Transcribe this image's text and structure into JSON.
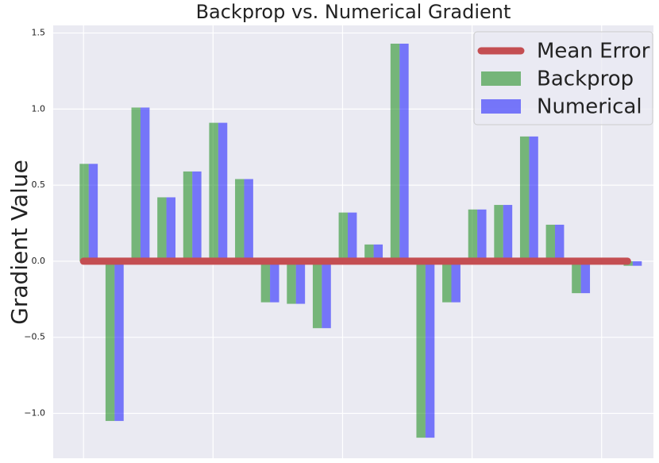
{
  "chart_data": {
    "type": "bar",
    "title": "Backprop vs. Numerical Gradient",
    "y_label": "Gradient Value",
    "x": [
      0,
      1,
      2,
      3,
      4,
      5,
      6,
      7,
      8,
      9,
      10,
      11,
      12,
      13,
      14,
      15,
      16,
      17,
      18,
      19,
      20,
      21
    ],
    "series": [
      {
        "name": "Mean Error",
        "type": "line",
        "color": "#c44e52",
        "values": [
          0,
          0,
          0,
          0,
          0,
          0,
          0,
          0,
          0,
          0,
          0,
          0,
          0,
          0,
          0,
          0,
          0,
          0,
          0,
          0,
          0,
          0
        ]
      },
      {
        "name": "Backprop",
        "color": "green",
        "values": [
          0.64,
          -1.05,
          1.01,
          0.42,
          0.59,
          0.91,
          0.54,
          -0.27,
          -0.28,
          -0.44,
          0.32,
          0.11,
          1.43,
          -1.16,
          -0.27,
          0.34,
          0.37,
          0.82,
          0.24,
          -0.21,
          0.0,
          -0.03
        ]
      },
      {
        "name": "Numerical",
        "color": "blue",
        "values": [
          0.64,
          -1.05,
          1.01,
          0.42,
          0.59,
          0.91,
          0.54,
          -0.27,
          -0.28,
          -0.44,
          0.32,
          0.11,
          1.43,
          -1.16,
          -0.27,
          0.34,
          0.37,
          0.82,
          0.24,
          -0.21,
          0.0,
          -0.03
        ]
      }
    ],
    "xlim": [
      -1.17,
      22.0
    ],
    "xticks": [
      0,
      5,
      10,
      15,
      20
    ],
    "ylim": [
      -1.295,
      1.55
    ],
    "yticks": [
      {
        "value": -1.0,
        "label": "−1.0"
      },
      {
        "value": -0.5,
        "label": "−0.5"
      },
      {
        "value": 0.0,
        "label": "0.0"
      },
      {
        "value": 0.5,
        "label": "0.5"
      },
      {
        "value": 1.0,
        "label": "1.0"
      },
      {
        "value": 1.5,
        "label": "1.5"
      }
    ],
    "grid": true,
    "legend": "upper right"
  }
}
